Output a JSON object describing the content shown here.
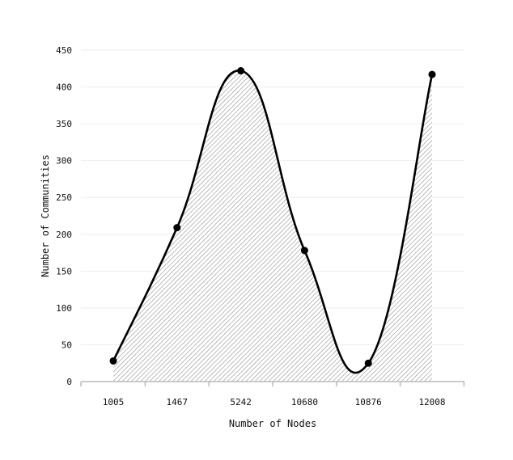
{
  "chart_data": {
    "type": "area",
    "title": "",
    "xlabel": "Number of Nodes",
    "ylabel": "Number of Communities",
    "categories": [
      "1005",
      "1467",
      "5242",
      "10680",
      "10876",
      "12008"
    ],
    "values": [
      28,
      209,
      422,
      178,
      25,
      417
    ],
    "ylim": [
      0,
      450
    ],
    "yticks": [
      "0",
      "50",
      "100",
      "150",
      "200",
      "250",
      "300",
      "350",
      "400",
      "450"
    ],
    "grid": true,
    "fill": "hatched",
    "line_color": "#000000",
    "hatch_color": "#999999"
  }
}
